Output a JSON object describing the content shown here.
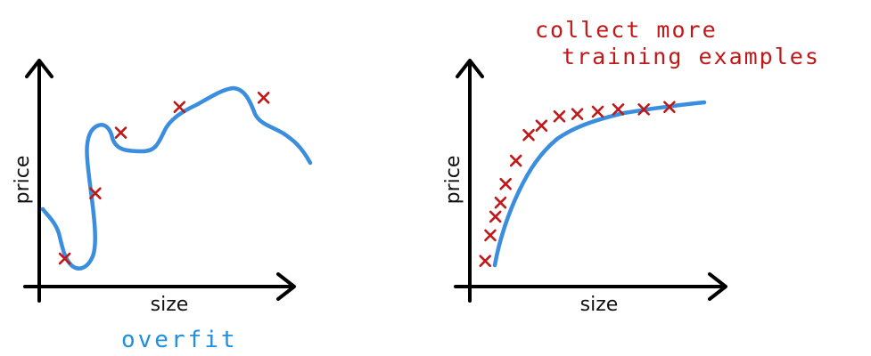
{
  "chart_data": [
    {
      "type": "line",
      "xlabel": "size",
      "ylabel": "price",
      "caption": "overfit",
      "points": [
        [
          0.1,
          0.12
        ],
        [
          0.22,
          0.4
        ],
        [
          0.32,
          0.66
        ],
        [
          0.55,
          0.77
        ],
        [
          0.88,
          0.81
        ]
      ]
    },
    {
      "type": "line",
      "xlabel": "size",
      "ylabel": "price",
      "annotation": [
        "collect more",
        "training examples"
      ],
      "points": [
        [
          0.06,
          0.11
        ],
        [
          0.08,
          0.22
        ],
        [
          0.1,
          0.3
        ],
        [
          0.12,
          0.36
        ],
        [
          0.14,
          0.44
        ],
        [
          0.18,
          0.54
        ],
        [
          0.23,
          0.65
        ],
        [
          0.28,
          0.69
        ],
        [
          0.35,
          0.73
        ],
        [
          0.42,
          0.74
        ],
        [
          0.5,
          0.75
        ],
        [
          0.58,
          0.76
        ],
        [
          0.68,
          0.76
        ],
        [
          0.78,
          0.77
        ]
      ]
    }
  ],
  "colors": {
    "axis": "#000000",
    "curve": "#3b8ede",
    "marker": "#c01818",
    "caption": "#1f8fe0",
    "annotation": "#c01818"
  }
}
